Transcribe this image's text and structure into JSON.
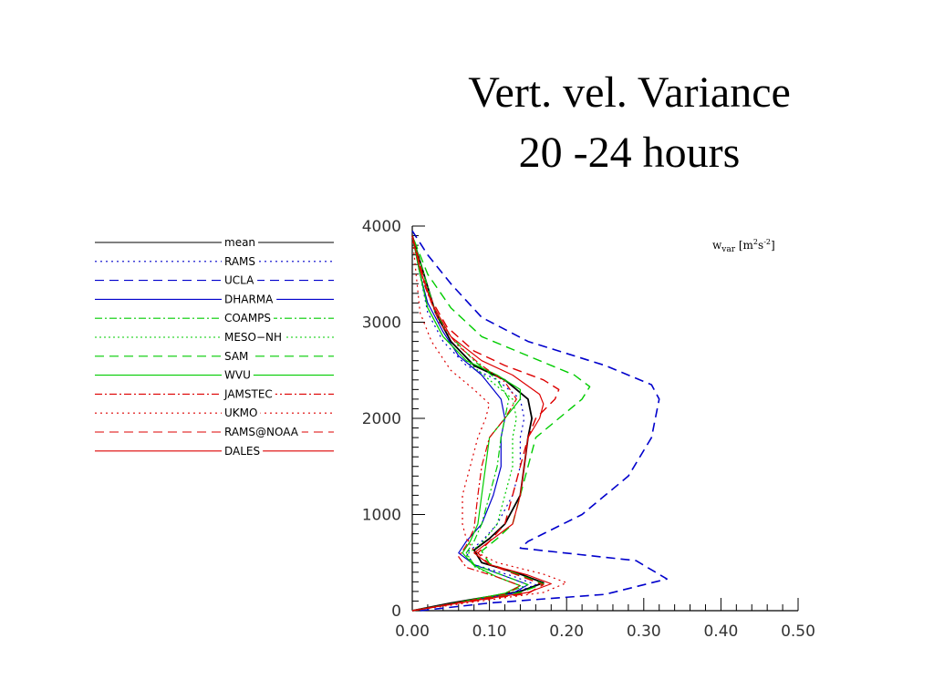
{
  "title_lines": [
    "Vert. vel. Variance",
    "20 -24 hours"
  ],
  "chart_data": {
    "type": "line",
    "title": "Vert. vel. Variance 20 -24 hours",
    "annotation": {
      "base": "w",
      "sub": "var",
      "units_prefix": " [m",
      "units_mid": "s",
      "units_suffix": "]",
      "exp1": "2",
      "exp2": "-2"
    },
    "xlabel": "",
    "ylabel": "",
    "xlim": [
      0.0,
      0.5
    ],
    "ylim": [
      0,
      4000
    ],
    "x_ticks": [
      "0.00",
      "0.10",
      "0.20",
      "0.30",
      "0.40",
      "0.50"
    ],
    "y_ticks": [
      "0",
      "1000",
      "2000",
      "3000",
      "4000"
    ],
    "legend_position": "left",
    "series": [
      {
        "name": "mean",
        "color": "#000000",
        "dash": "",
        "width": 1.8,
        "points": [
          [
            0.0,
            0
          ],
          [
            0.05,
            80
          ],
          [
            0.14,
            200
          ],
          [
            0.17,
            290
          ],
          [
            0.14,
            380
          ],
          [
            0.09,
            500
          ],
          [
            0.08,
            630
          ],
          [
            0.1,
            750
          ],
          [
            0.12,
            900
          ],
          [
            0.14,
            1200
          ],
          [
            0.145,
            1500
          ],
          [
            0.15,
            1800
          ],
          [
            0.155,
            2000
          ],
          [
            0.15,
            2200
          ],
          [
            0.12,
            2400
          ],
          [
            0.08,
            2550
          ],
          [
            0.05,
            2800
          ],
          [
            0.03,
            3100
          ],
          [
            0.015,
            3500
          ],
          [
            0.0,
            3900
          ]
        ]
      },
      {
        "name": "RAMS",
        "color": "#0000cc",
        "dash": "2,4",
        "width": 1.2,
        "points": [
          [
            0.0,
            0
          ],
          [
            0.05,
            70
          ],
          [
            0.13,
            180
          ],
          [
            0.16,
            270
          ],
          [
            0.13,
            360
          ],
          [
            0.08,
            480
          ],
          [
            0.07,
            600
          ],
          [
            0.09,
            720
          ],
          [
            0.11,
            900
          ],
          [
            0.13,
            1200
          ],
          [
            0.14,
            1500
          ],
          [
            0.14,
            1800
          ],
          [
            0.145,
            2000
          ],
          [
            0.14,
            2200
          ],
          [
            0.11,
            2400
          ],
          [
            0.07,
            2550
          ],
          [
            0.04,
            2800
          ],
          [
            0.02,
            3100
          ],
          [
            0.01,
            3500
          ],
          [
            0.0,
            3900
          ]
        ]
      },
      {
        "name": "UCLA",
        "color": "#0000cc",
        "dash": "10,6",
        "width": 1.6,
        "points": [
          [
            0.01,
            0
          ],
          [
            0.1,
            80
          ],
          [
            0.25,
            170
          ],
          [
            0.33,
            330
          ],
          [
            0.29,
            520
          ],
          [
            0.14,
            650
          ],
          [
            0.15,
            720
          ],
          [
            0.22,
            1000
          ],
          [
            0.28,
            1400
          ],
          [
            0.31,
            1800
          ],
          [
            0.32,
            2200
          ],
          [
            0.31,
            2350
          ],
          [
            0.25,
            2550
          ],
          [
            0.15,
            2800
          ],
          [
            0.09,
            3050
          ],
          [
            0.05,
            3400
          ],
          [
            0.02,
            3700
          ],
          [
            0.0,
            3950
          ]
        ]
      },
      {
        "name": "DHARMA",
        "color": "#0000cc",
        "dash": "",
        "width": 1.2,
        "points": [
          [
            0.0,
            0
          ],
          [
            0.05,
            70
          ],
          [
            0.13,
            180
          ],
          [
            0.15,
            270
          ],
          [
            0.12,
            360
          ],
          [
            0.08,
            480
          ],
          [
            0.06,
            600
          ],
          [
            0.07,
            720
          ],
          [
            0.09,
            900
          ],
          [
            0.105,
            1200
          ],
          [
            0.115,
            1500
          ],
          [
            0.115,
            1800
          ],
          [
            0.12,
            2000
          ],
          [
            0.115,
            2200
          ],
          [
            0.09,
            2450
          ],
          [
            0.06,
            2650
          ],
          [
            0.04,
            2900
          ],
          [
            0.02,
            3200
          ],
          [
            0.01,
            3500
          ],
          [
            0.0,
            3900
          ]
        ]
      },
      {
        "name": "COAMPS",
        "color": "#00cc00",
        "dash": "8,3,2,3",
        "width": 1.2,
        "points": [
          [
            0.0,
            0
          ],
          [
            0.05,
            70
          ],
          [
            0.12,
            180
          ],
          [
            0.15,
            270
          ],
          [
            0.12,
            360
          ],
          [
            0.08,
            480
          ],
          [
            0.07,
            600
          ],
          [
            0.08,
            720
          ],
          [
            0.09,
            900
          ],
          [
            0.1,
            1200
          ],
          [
            0.11,
            1500
          ],
          [
            0.115,
            1800
          ],
          [
            0.12,
            2000
          ],
          [
            0.125,
            2200
          ],
          [
            0.11,
            2400
          ],
          [
            0.08,
            2600
          ],
          [
            0.05,
            2850
          ],
          [
            0.03,
            3100
          ],
          [
            0.015,
            3500
          ],
          [
            0.0,
            3900
          ]
        ]
      },
      {
        "name": "MESO−NH",
        "color": "#00cc00",
        "dash": "2,3",
        "width": 1.2,
        "points": [
          [
            0.0,
            0
          ],
          [
            0.05,
            70
          ],
          [
            0.12,
            180
          ],
          [
            0.14,
            260
          ],
          [
            0.11,
            350
          ],
          [
            0.08,
            460
          ],
          [
            0.07,
            580
          ],
          [
            0.09,
            700
          ],
          [
            0.11,
            900
          ],
          [
            0.12,
            1200
          ],
          [
            0.13,
            1500
          ],
          [
            0.13,
            1800
          ],
          [
            0.135,
            2000
          ],
          [
            0.13,
            2200
          ],
          [
            0.1,
            2400
          ],
          [
            0.07,
            2600
          ],
          [
            0.04,
            2850
          ],
          [
            0.02,
            3150
          ],
          [
            0.01,
            3500
          ],
          [
            0.0,
            3900
          ]
        ]
      },
      {
        "name": "SAM",
        "color": "#00cc00",
        "dash": "10,6",
        "width": 1.4,
        "points": [
          [
            0.0,
            0
          ],
          [
            0.06,
            80
          ],
          [
            0.14,
            190
          ],
          [
            0.17,
            280
          ],
          [
            0.14,
            370
          ],
          [
            0.1,
            490
          ],
          [
            0.09,
            620
          ],
          [
            0.11,
            750
          ],
          [
            0.13,
            900
          ],
          [
            0.14,
            1200
          ],
          [
            0.15,
            1500
          ],
          [
            0.16,
            1800
          ],
          [
            0.19,
            2000
          ],
          [
            0.22,
            2200
          ],
          [
            0.23,
            2330
          ],
          [
            0.21,
            2450
          ],
          [
            0.15,
            2650
          ],
          [
            0.09,
            2850
          ],
          [
            0.05,
            3150
          ],
          [
            0.02,
            3500
          ],
          [
            0.0,
            3900
          ]
        ]
      },
      {
        "name": "WVU",
        "color": "#00cc00",
        "dash": "",
        "width": 1.2,
        "points": [
          [
            0.0,
            0
          ],
          [
            0.05,
            70
          ],
          [
            0.12,
            180
          ],
          [
            0.14,
            260
          ],
          [
            0.11,
            350
          ],
          [
            0.08,
            470
          ],
          [
            0.065,
            600
          ],
          [
            0.075,
            720
          ],
          [
            0.085,
            900
          ],
          [
            0.09,
            1200
          ],
          [
            0.095,
            1500
          ],
          [
            0.1,
            1800
          ],
          [
            0.12,
            2000
          ],
          [
            0.14,
            2200
          ],
          [
            0.14,
            2300
          ],
          [
            0.11,
            2450
          ],
          [
            0.07,
            2600
          ],
          [
            0.04,
            2850
          ],
          [
            0.02,
            3150
          ],
          [
            0.01,
            3500
          ],
          [
            0.0,
            3900
          ]
        ]
      },
      {
        "name": "JAMSTEC",
        "color": "#dd0000",
        "dash": "8,3,2,3",
        "width": 1.2,
        "points": [
          [
            0.0,
            0
          ],
          [
            0.05,
            70
          ],
          [
            0.12,
            170
          ],
          [
            0.14,
            260
          ],
          [
            0.11,
            350
          ],
          [
            0.07,
            450
          ],
          [
            0.06,
            560
          ],
          [
            0.07,
            680
          ],
          [
            0.08,
            850
          ],
          [
            0.085,
            1200
          ],
          [
            0.09,
            1500
          ],
          [
            0.1,
            1800
          ],
          [
            0.12,
            2000
          ],
          [
            0.135,
            2200
          ],
          [
            0.12,
            2380
          ],
          [
            0.09,
            2550
          ],
          [
            0.06,
            2750
          ],
          [
            0.035,
            3000
          ],
          [
            0.015,
            3400
          ],
          [
            0.0,
            3900
          ]
        ]
      },
      {
        "name": "UKMO",
        "color": "#dd0000",
        "dash": "2,4",
        "width": 1.2,
        "points": [
          [
            0.0,
            0
          ],
          [
            0.07,
            80
          ],
          [
            0.17,
            190
          ],
          [
            0.2,
            290
          ],
          [
            0.17,
            380
          ],
          [
            0.11,
            500
          ],
          [
            0.08,
            620
          ],
          [
            0.07,
            750
          ],
          [
            0.065,
            900
          ],
          [
            0.065,
            1200
          ],
          [
            0.075,
            1500
          ],
          [
            0.085,
            1800
          ],
          [
            0.095,
            2000
          ],
          [
            0.1,
            2150
          ],
          [
            0.08,
            2300
          ],
          [
            0.05,
            2500
          ],
          [
            0.025,
            2800
          ],
          [
            0.01,
            3100
          ],
          [
            0.005,
            3500
          ],
          [
            0.0,
            3900
          ]
        ]
      },
      {
        "name": "RAMS@NOAA",
        "color": "#dd0000",
        "dash": "10,6",
        "width": 1.4,
        "points": [
          [
            0.0,
            0
          ],
          [
            0.06,
            80
          ],
          [
            0.15,
            180
          ],
          [
            0.17,
            270
          ],
          [
            0.14,
            360
          ],
          [
            0.1,
            480
          ],
          [
            0.085,
            600
          ],
          [
            0.1,
            720
          ],
          [
            0.12,
            900
          ],
          [
            0.13,
            1200
          ],
          [
            0.14,
            1500
          ],
          [
            0.15,
            1800
          ],
          [
            0.16,
            2000
          ],
          [
            0.185,
            2200
          ],
          [
            0.19,
            2300
          ],
          [
            0.17,
            2400
          ],
          [
            0.12,
            2550
          ],
          [
            0.08,
            2700
          ],
          [
            0.045,
            2950
          ],
          [
            0.02,
            3300
          ],
          [
            0.0,
            3900
          ]
        ]
      },
      {
        "name": "DALES",
        "color": "#dd0000",
        "dash": "",
        "width": 1.2,
        "points": [
          [
            0.0,
            0
          ],
          [
            0.06,
            80
          ],
          [
            0.15,
            190
          ],
          [
            0.18,
            280
          ],
          [
            0.15,
            370
          ],
          [
            0.1,
            480
          ],
          [
            0.08,
            600
          ],
          [
            0.1,
            720
          ],
          [
            0.13,
            900
          ],
          [
            0.14,
            1200
          ],
          [
            0.145,
            1500
          ],
          [
            0.15,
            1800
          ],
          [
            0.165,
            2000
          ],
          [
            0.17,
            2150
          ],
          [
            0.165,
            2250
          ],
          [
            0.13,
            2450
          ],
          [
            0.09,
            2600
          ],
          [
            0.05,
            2850
          ],
          [
            0.025,
            3200
          ],
          [
            0.01,
            3550
          ],
          [
            0.0,
            3900
          ]
        ]
      }
    ]
  }
}
